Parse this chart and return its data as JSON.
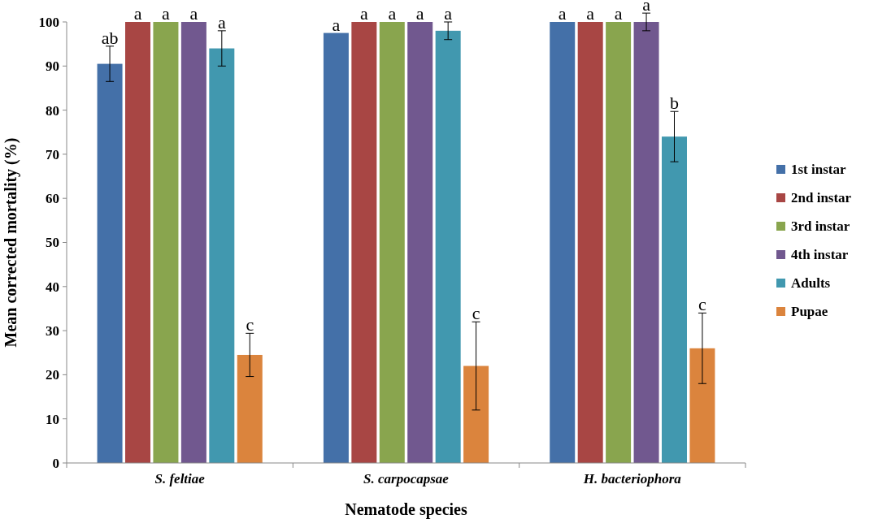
{
  "chart_data": {
    "type": "bar",
    "xlabel": "Nematode species",
    "ylabel": "Mean corrected mortality (%)",
    "categories": [
      "S. feltiae",
      "S. carpocapsae",
      "H. bacteriophora"
    ],
    "ylim": [
      0,
      100
    ],
    "yticks": [
      0,
      10,
      20,
      30,
      40,
      50,
      60,
      70,
      80,
      90,
      100
    ],
    "legend": "right",
    "grid": false,
    "series": [
      {
        "name": "1st instar",
        "color": "#4470a8",
        "values": [
          90.5,
          97.5,
          100
        ],
        "errors": [
          4,
          null,
          null
        ],
        "value_labels": [
          "ab",
          "a",
          "a"
        ]
      },
      {
        "name": "2nd instar",
        "color": "#a84644",
        "values": [
          100,
          100,
          100
        ],
        "errors": [
          null,
          null,
          null
        ],
        "value_labels": [
          "a",
          "a",
          "a"
        ]
      },
      {
        "name": "3rd instar",
        "color": "#89a54e",
        "values": [
          100,
          100,
          100
        ],
        "errors": [
          null,
          null,
          null
        ],
        "value_labels": [
          "a",
          "a",
          "a"
        ]
      },
      {
        "name": "4th instar",
        "color": "#71588f",
        "values": [
          100,
          100,
          100
        ],
        "errors": [
          null,
          null,
          2
        ],
        "value_labels": [
          "a",
          "a",
          "a"
        ]
      },
      {
        "name": "Adults",
        "color": "#4198af",
        "values": [
          94,
          98,
          74
        ],
        "errors": [
          4,
          2,
          5.7
        ],
        "value_labels": [
          "a",
          "a",
          "b"
        ]
      },
      {
        "name": "Pupae",
        "color": "#db843d",
        "values": [
          24.5,
          22,
          26
        ],
        "errors": [
          4.9,
          10,
          8
        ],
        "value_labels": [
          "c",
          "c",
          "c"
        ]
      }
    ]
  }
}
